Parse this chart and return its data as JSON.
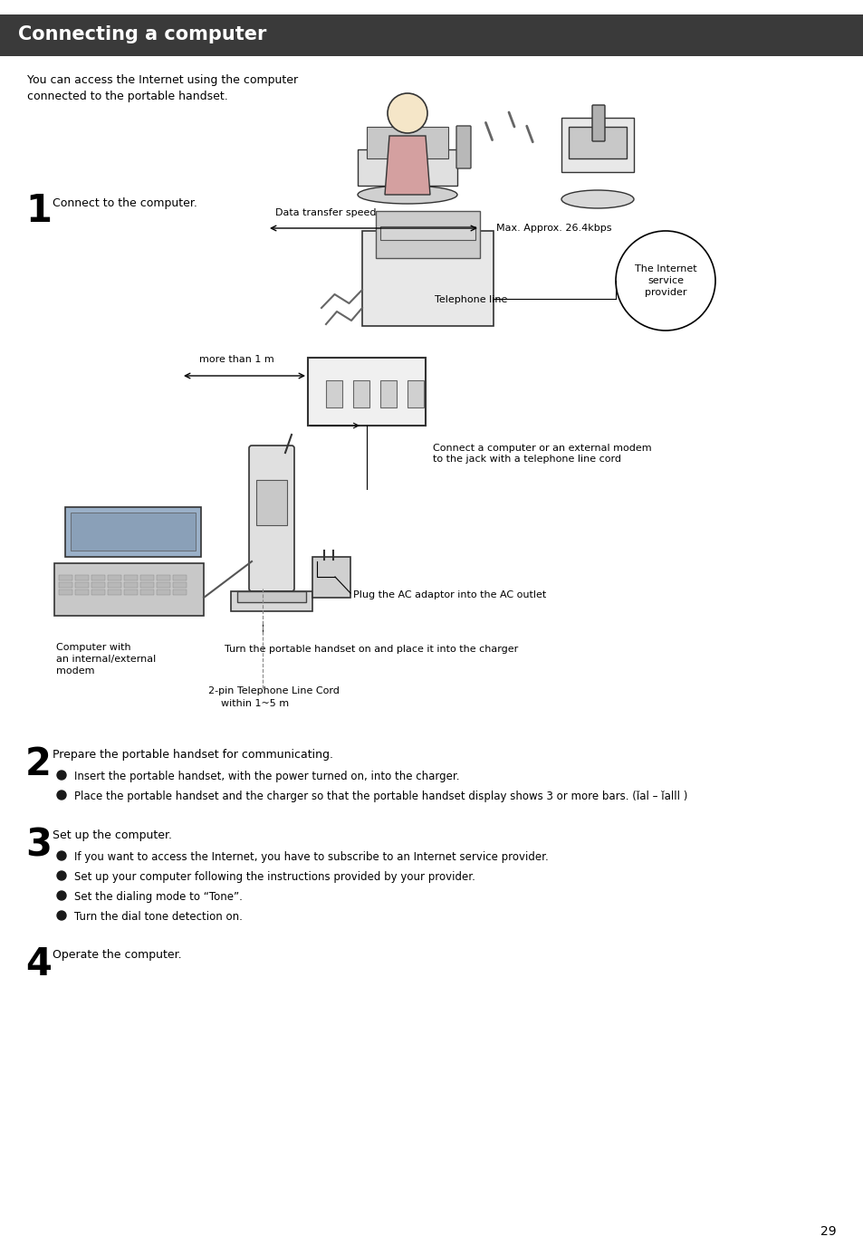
{
  "title": "Connecting a computer",
  "title_bg": "#3a3a3a",
  "title_fg": "#ffffff",
  "page_number": "29",
  "bg_color": "#ffffff",
  "intro_text": "You can access the Internet using the computer\nconnected to the portable handset.",
  "step1_number": "1",
  "step1_text": "Connect to the computer.",
  "step2_number": "2",
  "step2_text": "Prepare the portable handset for communicating.",
  "step2_bullets": [
    "Insert the portable handset, with the power turned on, into the charger.",
    "Place the portable handset and the charger so that the portable handset display shows 3 or more bars. (ǐal – ǐalll )"
  ],
  "step3_number": "3",
  "step3_text": "Set up the computer.",
  "step3_bullets": [
    "If you want to access the Internet, you have to subscribe to an Internet service provider.",
    "Set up your computer following the instructions provided by your provider.",
    "Set the dialing mode to “Tone”.",
    "Turn the dial tone detection on."
  ],
  "step4_number": "4",
  "step4_text": "Operate the computer.",
  "diag": {
    "data_transfer": "Data transfer speed",
    "max_approx": "Max. Approx. 26.4kbps",
    "telephone_line": "Telephone line",
    "internet_provider": "The Internet\nservice\nprovider",
    "more_than_1m": "more than 1 m",
    "computer_label": "Computer with\nan internal/external\nmodem",
    "connect_jack": "Connect a computer or an external modem\nto the jack with a telephone line cord",
    "plug_ac": "Plug the AC adaptor into the AC outlet",
    "turn_handset": "Turn the portable handset on and place it into the charger",
    "pin_cord": "2-pin Telephone Line Cord\n    within 1~5 m"
  }
}
